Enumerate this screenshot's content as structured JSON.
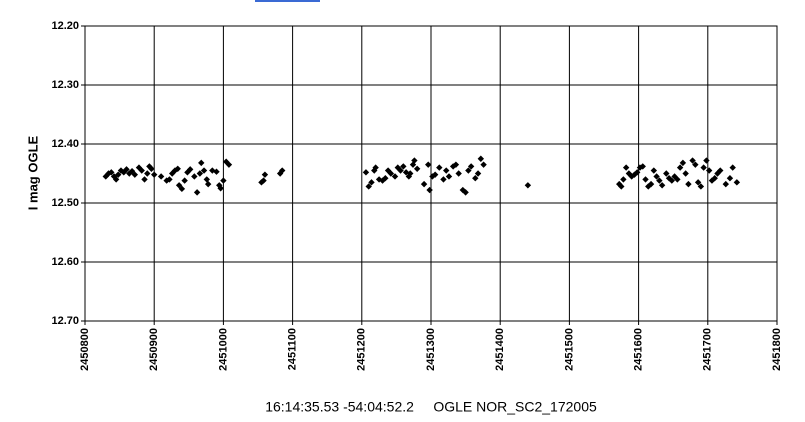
{
  "chart_data": {
    "type": "scatter",
    "x_label": "16:14:35.53 -54:04:52.2     OGLE NOR_SC2_172005",
    "y_label": "I mag OGLE",
    "color": "#000000",
    "y_inverted": true,
    "grid": true,
    "xlim": [
      2450800,
      2451800
    ],
    "xticks": [
      2450800,
      2450900,
      2451000,
      2451100,
      2451200,
      2451300,
      2451400,
      2451500,
      2451600,
      2451700,
      2451800
    ],
    "ylim": [
      12.2,
      12.7
    ],
    "yticks": [
      {
        "value": 12.2,
        "label": "12.20"
      },
      {
        "value": 12.3,
        "label": "12.30"
      },
      {
        "value": 12.4,
        "label": "12.40"
      },
      {
        "value": 12.5,
        "label": "12.50"
      },
      {
        "value": 12.6,
        "label": "12.60"
      },
      {
        "value": 12.7,
        "label": "12.70"
      }
    ],
    "x": [
      2450830,
      2450834,
      2450838,
      2450842,
      2450845,
      2450848,
      2450852,
      2450856,
      2450860,
      2450864,
      2450868,
      2450872,
      2450878,
      2450882,
      2450886,
      2450890,
      2450893,
      2450896,
      2450900,
      2450910,
      2450918,
      2450922,
      2450926,
      2450930,
      2450934,
      2450936,
      2450940,
      2450944,
      2450948,
      2450952,
      2450958,
      2450962,
      2450966,
      2450968,
      2450972,
      2450976,
      2450978,
      2450984,
      2450990,
      2450994,
      2450996,
      2451000,
      2451004,
      2451008,
      2451055,
      2451058,
      2451060,
      2451082,
      2451085,
      2451206,
      2451210,
      2451214,
      2451218,
      2451220,
      2451225,
      2451230,
      2451234,
      2451238,
      2451242,
      2451248,
      2451252,
      2451256,
      2451260,
      2451264,
      2451268,
      2451270,
      2451274,
      2451276,
      2451280,
      2451290,
      2451296,
      2451298,
      2451302,
      2451306,
      2451312,
      2451318,
      2451322,
      2451326,
      2451332,
      2451336,
      2451340,
      2451346,
      2451350,
      2451354,
      2451358,
      2451364,
      2451368,
      2451372,
      2451376,
      2451440,
      2451572,
      2451575,
      2451578,
      2451582,
      2451586,
      2451590,
      2451594,
      2451598,
      2451602,
      2451606,
      2451610,
      2451614,
      2451618,
      2451622,
      2451626,
      2451630,
      2451634,
      2451640,
      2451644,
      2451648,
      2451652,
      2451656,
      2451660,
      2451664,
      2451668,
      2451672,
      2451678,
      2451682,
      2451686,
      2451690,
      2451694,
      2451698,
      2451702,
      2451706,
      2451710,
      2451714,
      2451718,
      2451726,
      2451732,
      2451736,
      2451742
    ],
    "values": [
      12.455,
      12.45,
      12.448,
      12.455,
      12.46,
      12.452,
      12.445,
      12.448,
      12.443,
      12.45,
      12.446,
      12.452,
      12.44,
      12.445,
      12.46,
      12.45,
      12.438,
      12.442,
      12.452,
      12.455,
      12.462,
      12.46,
      12.45,
      12.445,
      12.442,
      12.47,
      12.476,
      12.462,
      12.448,
      12.443,
      12.455,
      12.482,
      12.45,
      12.432,
      12.445,
      12.46,
      12.468,
      12.445,
      12.447,
      12.47,
      12.475,
      12.462,
      12.43,
      12.435,
      12.465,
      12.462,
      12.452,
      12.45,
      12.445,
      12.448,
      12.472,
      12.465,
      12.445,
      12.44,
      12.46,
      12.462,
      12.458,
      12.445,
      12.45,
      12.455,
      12.44,
      12.445,
      12.438,
      12.448,
      12.455,
      12.45,
      12.435,
      12.428,
      12.442,
      12.468,
      12.435,
      12.478,
      12.455,
      12.452,
      12.44,
      12.46,
      12.445,
      12.455,
      12.438,
      12.435,
      12.45,
      12.478,
      12.482,
      12.445,
      12.438,
      12.458,
      12.45,
      12.425,
      12.435,
      12.47,
      12.468,
      12.472,
      12.46,
      12.44,
      12.45,
      12.455,
      12.452,
      12.448,
      12.44,
      12.438,
      12.46,
      12.472,
      12.468,
      12.445,
      12.455,
      12.462,
      12.47,
      12.45,
      12.458,
      12.462,
      12.455,
      12.46,
      12.44,
      12.432,
      12.45,
      12.468,
      12.428,
      12.435,
      12.465,
      12.472,
      12.44,
      12.428,
      12.445,
      12.462,
      12.458,
      12.45,
      12.445,
      12.468,
      12.458,
      12.44,
      12.465
    ]
  }
}
